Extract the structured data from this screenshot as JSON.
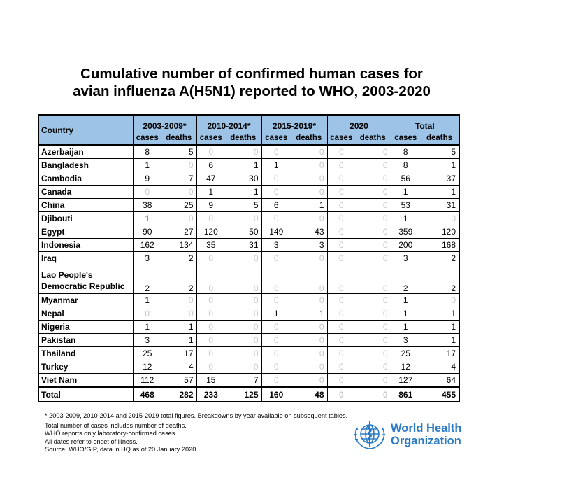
{
  "title": {
    "line1": "Cumulative number of confirmed human cases for",
    "line2": "avian influenza A(H5N1) reported to WHO, 2003-2020"
  },
  "table": {
    "country_header": "Country",
    "periods": [
      "2003-2009*",
      "2010-2014*",
      "2015-2019*",
      "2020",
      "Total"
    ],
    "sub_headers": [
      "cases",
      "deaths"
    ],
    "rows": [
      {
        "country": "Azerbaijan",
        "values": [
          8,
          5,
          0,
          0,
          0,
          0,
          0,
          0,
          8,
          5
        ]
      },
      {
        "country": "Bangladesh",
        "values": [
          1,
          0,
          6,
          1,
          1,
          0,
          0,
          0,
          8,
          1
        ]
      },
      {
        "country": "Cambodia",
        "values": [
          9,
          7,
          47,
          30,
          0,
          0,
          0,
          0,
          56,
          37
        ]
      },
      {
        "country": "Canada",
        "values": [
          0,
          0,
          1,
          1,
          0,
          0,
          0,
          0,
          1,
          1
        ]
      },
      {
        "country": "China",
        "values": [
          38,
          25,
          9,
          5,
          6,
          1,
          0,
          0,
          53,
          31
        ]
      },
      {
        "country": "Djibouti",
        "values": [
          1,
          0,
          0,
          0,
          0,
          0,
          0,
          0,
          1,
          0
        ]
      },
      {
        "country": "Egypt",
        "values": [
          90,
          27,
          120,
          50,
          149,
          43,
          0,
          0,
          359,
          120
        ]
      },
      {
        "country": "Indonesia",
        "values": [
          162,
          134,
          35,
          31,
          3,
          3,
          0,
          0,
          200,
          168
        ]
      },
      {
        "country": "Iraq",
        "values": [
          3,
          2,
          0,
          0,
          0,
          0,
          0,
          0,
          3,
          2
        ]
      },
      {
        "country": "Lao People's\nDemocratic Republic",
        "values": [
          2,
          2,
          0,
          0,
          0,
          0,
          0,
          0,
          2,
          2
        ]
      },
      {
        "country": "Myanmar",
        "values": [
          1,
          0,
          0,
          0,
          0,
          0,
          0,
          0,
          1,
          0
        ]
      },
      {
        "country": "Nepal",
        "values": [
          0,
          0,
          0,
          0,
          1,
          1,
          0,
          0,
          1,
          1
        ]
      },
      {
        "country": "Nigeria",
        "values": [
          1,
          1,
          0,
          0,
          0,
          0,
          0,
          0,
          1,
          1
        ]
      },
      {
        "country": "Pakistan",
        "values": [
          3,
          1,
          0,
          0,
          0,
          0,
          0,
          0,
          3,
          1
        ]
      },
      {
        "country": "Thailand",
        "values": [
          25,
          17,
          0,
          0,
          0,
          0,
          0,
          0,
          25,
          17
        ]
      },
      {
        "country": "Turkey",
        "values": [
          12,
          4,
          0,
          0,
          0,
          0,
          0,
          0,
          12,
          4
        ]
      },
      {
        "country": "Viet Nam",
        "values": [
          112,
          57,
          15,
          7,
          0,
          0,
          0,
          0,
          127,
          64
        ]
      }
    ],
    "total": {
      "country": "Total",
      "values": [
        468,
        282,
        233,
        125,
        160,
        48,
        0,
        0,
        861,
        455
      ]
    }
  },
  "footnote": "* 2003-2009, 2010-2014 and 2015-2019 total figures. Breakdowns by year available on subsequent tables.",
  "notes": [
    "Total number of cases includes number of deaths.",
    "WHO reports only laboratory-confirmed cases.",
    "All dates refer to onset of illness.",
    "Source: WHO/GIP, data in HQ as of 20 January 2020"
  ],
  "logo": {
    "line1": "World Health",
    "line2": "Organization",
    "color": "#2b7ac4"
  },
  "colors": {
    "header_bg": "#9dc3e6",
    "zero_text": "#c8c8c8"
  }
}
